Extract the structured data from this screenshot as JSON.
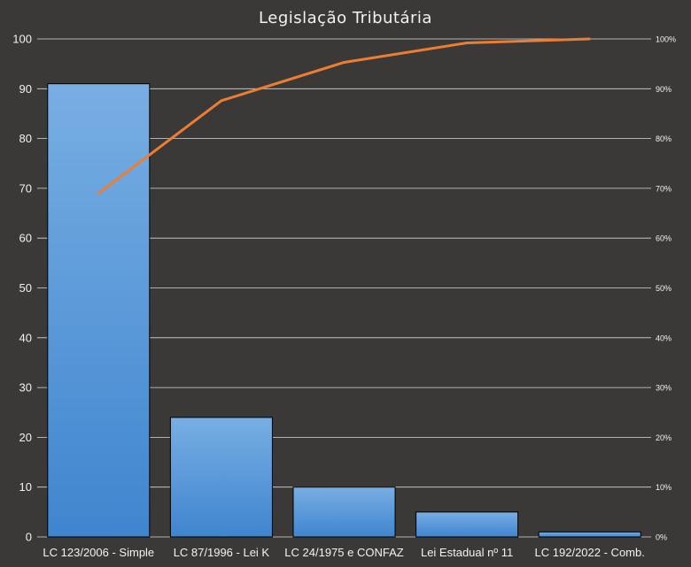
{
  "chart_data": {
    "type": "bar",
    "title": "Legislação Tributária",
    "categories": [
      "LC 123/2006 - Simple",
      "LC 87/1996 - Lei K",
      "LC 24/1975 e CONFAZ",
      "Lei Estadual nº 11",
      "LC 192/2022 - Comb."
    ],
    "series": [
      {
        "type": "bar",
        "values": [
          91,
          24,
          10,
          5,
          1
        ],
        "color": "#5b9bd5"
      },
      {
        "type": "line",
        "axis": "secondary",
        "values": [
          0.69,
          0.876,
          0.953,
          0.992,
          1.0
        ],
        "color": "#ed7d31"
      }
    ],
    "ylim": [
      0,
      100
    ],
    "yticks": [
      "0",
      "10",
      "20",
      "30",
      "40",
      "50",
      "60",
      "70",
      "80",
      "90",
      "100"
    ],
    "y2lim": [
      0,
      1
    ],
    "y2ticks": [
      "0%",
      "10%",
      "20%",
      "30%",
      "40%",
      "50%",
      "60%",
      "70%",
      "80%",
      "90%",
      "100%"
    ],
    "grid": true,
    "colors": {
      "background": "#3b3838",
      "plot": "#3b3838",
      "grid": "#d9d9d9",
      "text": "#f2f2f2"
    }
  }
}
